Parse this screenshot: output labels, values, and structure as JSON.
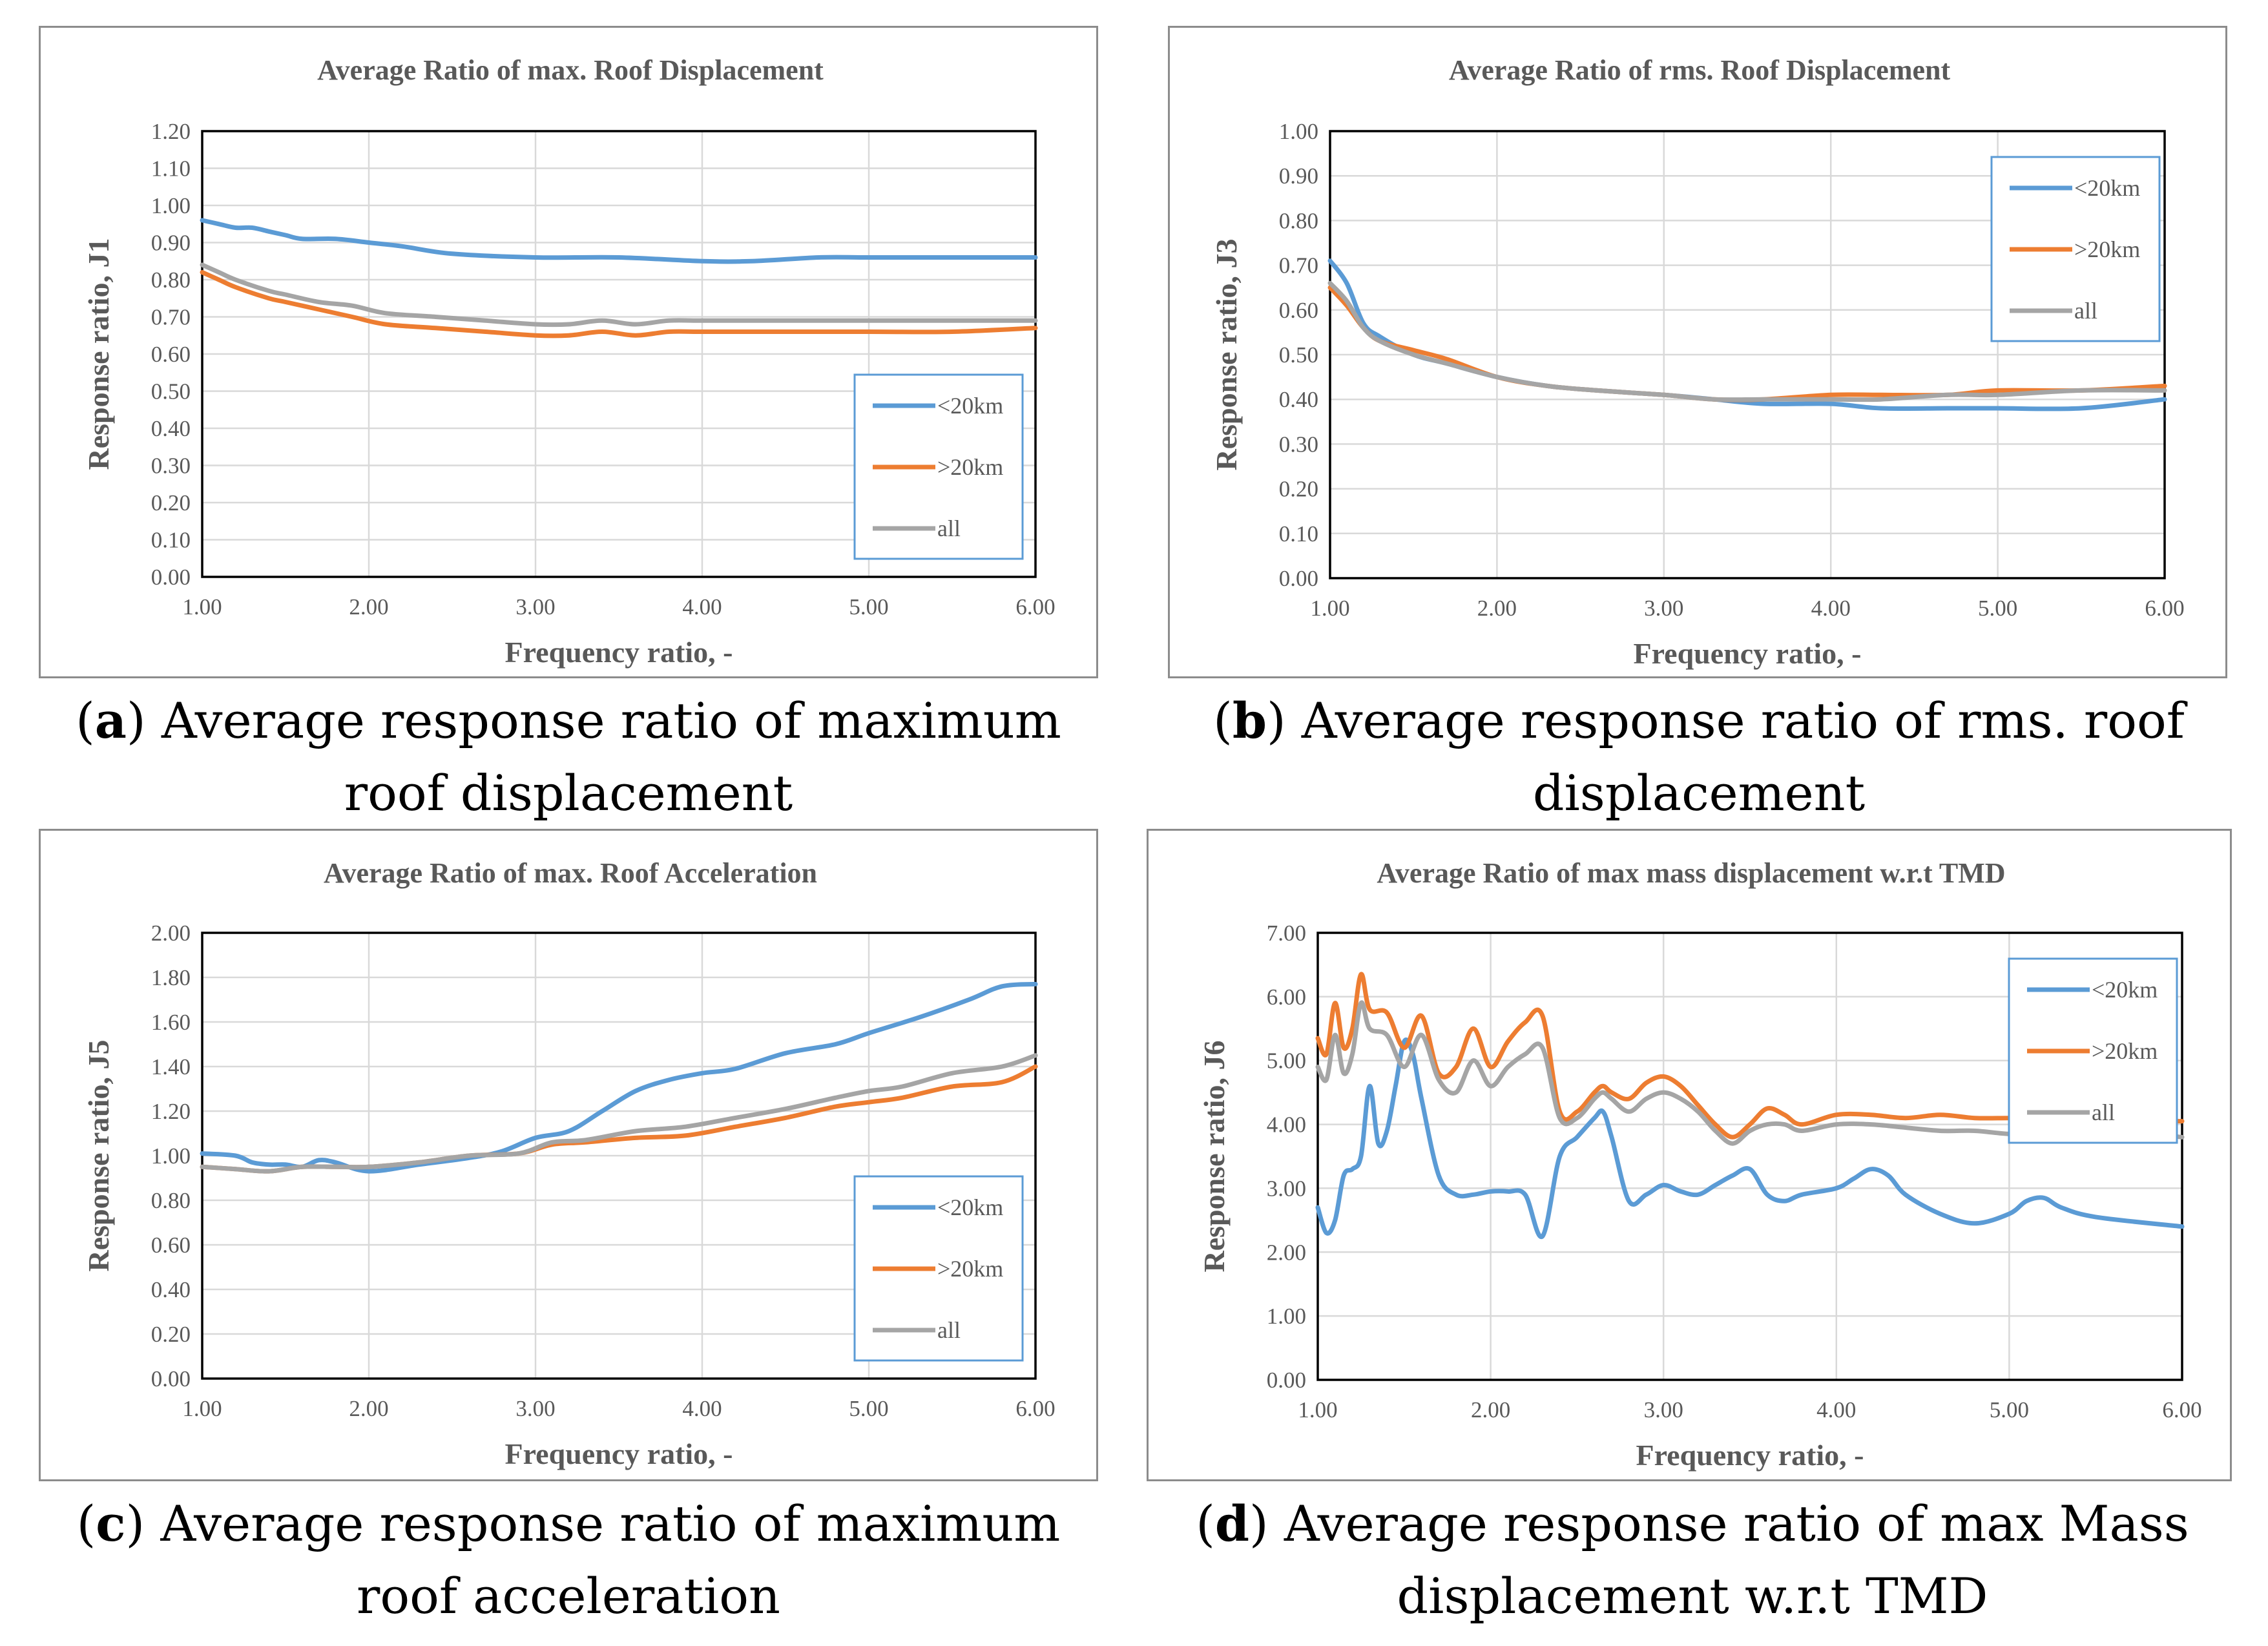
{
  "colors": {
    "lt20": "#5b9bd5",
    "gt20": "#ed7d31",
    "all": "#a5a5a5",
    "grid": "#d9d9d9",
    "text": "#595959",
    "border": "#8c8c8c"
  },
  "captions": [
    {
      "letter": "a",
      "text": ") Average response ratio of maximum roof displacement",
      "open": "("
    },
    {
      "letter": "b",
      "text": ") Average response ratio of rms. roof displacement",
      "open": "("
    },
    {
      "letter": "c",
      "text": ") Average response ratio of maximum roof acceleration",
      "open": "("
    },
    {
      "letter": "d",
      "text": ") Average response ratio of max Mass displacement w.r.t TMD",
      "open": "("
    }
  ],
  "chart_data": [
    {
      "type": "line",
      "title": "Average Ratio of max. Roof Displacement",
      "xlabel": "Frequency ratio, -",
      "ylabel": "Response ratio, J1",
      "xlim": [
        1,
        6
      ],
      "ylim": [
        0,
        1.2
      ],
      "xticks": [
        "1.00",
        "2.00",
        "3.00",
        "4.00",
        "5.00",
        "6.00"
      ],
      "yticks": [
        "0.00",
        "0.10",
        "0.20",
        "0.30",
        "0.40",
        "0.50",
        "0.60",
        "0.70",
        "0.80",
        "0.90",
        "1.00",
        "1.10",
        "1.20"
      ],
      "legend_position": "bottom-right",
      "series": [
        {
          "name": "<20km",
          "x": [
            1,
            1.1,
            1.2,
            1.3,
            1.4,
            1.5,
            1.6,
            1.8,
            2,
            2.2,
            2.5,
            3,
            3.5,
            4,
            4.3,
            4.7,
            5,
            5.5,
            6
          ],
          "values": [
            0.96,
            0.95,
            0.94,
            0.94,
            0.93,
            0.92,
            0.91,
            0.91,
            0.9,
            0.89,
            0.87,
            0.86,
            0.86,
            0.85,
            0.85,
            0.86,
            0.86,
            0.86,
            0.86
          ]
        },
        {
          "name": ">20km",
          "x": [
            1,
            1.1,
            1.2,
            1.4,
            1.5,
            1.7,
            1.9,
            2.1,
            2.4,
            2.7,
            3,
            3.2,
            3.4,
            3.6,
            3.8,
            4,
            4.5,
            5,
            5.5,
            6
          ],
          "values": [
            0.82,
            0.8,
            0.78,
            0.75,
            0.74,
            0.72,
            0.7,
            0.68,
            0.67,
            0.66,
            0.65,
            0.65,
            0.66,
            0.65,
            0.66,
            0.66,
            0.66,
            0.66,
            0.66,
            0.67
          ]
        },
        {
          "name": "all",
          "x": [
            1,
            1.1,
            1.2,
            1.4,
            1.5,
            1.7,
            1.9,
            2.1,
            2.4,
            2.7,
            3,
            3.2,
            3.4,
            3.6,
            3.8,
            4,
            4.5,
            5,
            5.5,
            6
          ],
          "values": [
            0.84,
            0.82,
            0.8,
            0.77,
            0.76,
            0.74,
            0.73,
            0.71,
            0.7,
            0.69,
            0.68,
            0.68,
            0.69,
            0.68,
            0.69,
            0.69,
            0.69,
            0.69,
            0.69,
            0.69
          ]
        }
      ]
    },
    {
      "type": "line",
      "title": "Average Ratio of rms. Roof Displacement",
      "xlabel": "Frequency ratio, -",
      "ylabel": "Response ratio, J3",
      "xlim": [
        1,
        6
      ],
      "ylim": [
        0,
        1.0
      ],
      "xticks": [
        "1.00",
        "2.00",
        "3.00",
        "4.00",
        "5.00",
        "6.00"
      ],
      "yticks": [
        "0.00",
        "0.10",
        "0.20",
        "0.30",
        "0.40",
        "0.50",
        "0.60",
        "0.70",
        "0.80",
        "0.90",
        "1.00"
      ],
      "legend_position": "top-right",
      "series": [
        {
          "name": "<20km",
          "x": [
            1,
            1.1,
            1.2,
            1.3,
            1.5,
            1.7,
            2,
            2.3,
            2.6,
            3,
            3.3,
            3.6,
            4,
            4.3,
            4.7,
            5,
            5.5,
            6
          ],
          "values": [
            0.71,
            0.66,
            0.57,
            0.54,
            0.5,
            0.48,
            0.45,
            0.43,
            0.42,
            0.41,
            0.4,
            0.39,
            0.39,
            0.38,
            0.38,
            0.38,
            0.38,
            0.4
          ]
        },
        {
          "name": ">20km",
          "x": [
            1,
            1.1,
            1.2,
            1.3,
            1.5,
            1.7,
            2,
            2.3,
            2.6,
            3,
            3.3,
            3.6,
            4,
            4.3,
            4.7,
            5,
            5.5,
            6
          ],
          "values": [
            0.65,
            0.61,
            0.56,
            0.53,
            0.51,
            0.49,
            0.45,
            0.43,
            0.42,
            0.41,
            0.4,
            0.4,
            0.41,
            0.41,
            0.41,
            0.42,
            0.42,
            0.43
          ]
        },
        {
          "name": "all",
          "x": [
            1,
            1.1,
            1.2,
            1.3,
            1.5,
            1.7,
            2,
            2.3,
            2.6,
            3,
            3.3,
            3.6,
            4,
            4.3,
            4.7,
            5,
            5.5,
            6
          ],
          "values": [
            0.66,
            0.62,
            0.56,
            0.53,
            0.5,
            0.48,
            0.45,
            0.43,
            0.42,
            0.41,
            0.4,
            0.4,
            0.4,
            0.4,
            0.41,
            0.41,
            0.42,
            0.42
          ]
        }
      ]
    },
    {
      "type": "line",
      "title": "Average Ratio of max. Roof Acceleration",
      "xlabel": "Frequency ratio, -",
      "ylabel": "Response ratio, J5",
      "xlim": [
        1,
        6
      ],
      "ylim": [
        0,
        2.0
      ],
      "xticks": [
        "1.00",
        "2.00",
        "3.00",
        "4.00",
        "5.00",
        "6.00"
      ],
      "yticks": [
        "0.00",
        "0.20",
        "0.40",
        "0.60",
        "0.80",
        "1.00",
        "1.20",
        "1.40",
        "1.60",
        "1.80",
        "2.00"
      ],
      "legend_position": "bottom-right",
      "series": [
        {
          "name": "<20km",
          "x": [
            1,
            1.2,
            1.3,
            1.4,
            1.5,
            1.6,
            1.7,
            1.8,
            2,
            2.3,
            2.6,
            2.8,
            3,
            3.2,
            3.4,
            3.6,
            3.8,
            4,
            4.2,
            4.5,
            4.8,
            5,
            5.3,
            5.6,
            5.8,
            6
          ],
          "values": [
            1.01,
            1.0,
            0.97,
            0.96,
            0.96,
            0.95,
            0.98,
            0.97,
            0.93,
            0.96,
            0.99,
            1.02,
            1.08,
            1.11,
            1.2,
            1.29,
            1.34,
            1.37,
            1.39,
            1.46,
            1.5,
            1.55,
            1.62,
            1.7,
            1.76,
            1.77
          ]
        },
        {
          "name": ">20km",
          "x": [
            1,
            1.2,
            1.4,
            1.6,
            1.8,
            2,
            2.3,
            2.6,
            2.9,
            3.1,
            3.3,
            3.6,
            3.9,
            4.2,
            4.5,
            4.8,
            5,
            5.2,
            5.5,
            5.8,
            6
          ],
          "values": [
            0.95,
            0.94,
            0.93,
            0.95,
            0.95,
            0.95,
            0.97,
            1.0,
            1.01,
            1.05,
            1.06,
            1.08,
            1.09,
            1.13,
            1.17,
            1.22,
            1.24,
            1.26,
            1.31,
            1.33,
            1.4
          ]
        },
        {
          "name": "all",
          "x": [
            1,
            1.2,
            1.4,
            1.6,
            1.8,
            2,
            2.3,
            2.6,
            2.9,
            3.1,
            3.3,
            3.6,
            3.9,
            4.2,
            4.5,
            4.8,
            5,
            5.2,
            5.5,
            5.8,
            6
          ],
          "values": [
            0.95,
            0.94,
            0.93,
            0.95,
            0.95,
            0.95,
            0.97,
            1.0,
            1.01,
            1.06,
            1.07,
            1.11,
            1.13,
            1.17,
            1.21,
            1.26,
            1.29,
            1.31,
            1.37,
            1.4,
            1.45
          ]
        }
      ]
    },
    {
      "type": "line",
      "title": "Average Ratio of max mass displacement w.r.t TMD",
      "xlabel": "Frequency ratio, -",
      "ylabel": "Response ratio, J6",
      "xlim": [
        1,
        6
      ],
      "ylim": [
        0,
        7.0
      ],
      "xticks": [
        "1.00",
        "2.00",
        "3.00",
        "4.00",
        "5.00",
        "6.00"
      ],
      "yticks": [
        "0.00",
        "1.00",
        "2.00",
        "3.00",
        "4.00",
        "5.00",
        "6.00",
        "7.00"
      ],
      "legend_position": "top-right",
      "series": [
        {
          "name": "<20km",
          "x": [
            1,
            1.05,
            1.1,
            1.15,
            1.2,
            1.25,
            1.3,
            1.35,
            1.4,
            1.45,
            1.5,
            1.55,
            1.6,
            1.7,
            1.8,
            1.9,
            2,
            2.1,
            2.2,
            2.3,
            2.4,
            2.5,
            2.6,
            2.65,
            2.7,
            2.8,
            2.9,
            3,
            3.1,
            3.2,
            3.3,
            3.4,
            3.5,
            3.6,
            3.7,
            3.8,
            4,
            4.1,
            4.2,
            4.3,
            4.4,
            4.6,
            4.8,
            5,
            5.1,
            5.2,
            5.3,
            5.5,
            6
          ],
          "values": [
            2.7,
            2.3,
            2.5,
            3.2,
            3.3,
            3.5,
            4.6,
            3.7,
            3.9,
            4.6,
            5.3,
            5.1,
            4.4,
            3.2,
            2.9,
            2.9,
            2.95,
            2.95,
            2.9,
            2.25,
            3.5,
            3.8,
            4.1,
            4.2,
            3.8,
            2.8,
            2.9,
            3.05,
            2.95,
            2.9,
            3.05,
            3.2,
            3.3,
            2.9,
            2.8,
            2.9,
            3.0,
            3.15,
            3.3,
            3.2,
            2.9,
            2.6,
            2.45,
            2.6,
            2.8,
            2.85,
            2.7,
            2.55,
            2.4
          ]
        },
        {
          "name": ">20km",
          "x": [
            1,
            1.05,
            1.1,
            1.15,
            1.2,
            1.25,
            1.3,
            1.4,
            1.5,
            1.6,
            1.7,
            1.8,
            1.9,
            2,
            2.1,
            2.2,
            2.3,
            2.4,
            2.5,
            2.6,
            2.65,
            2.7,
            2.8,
            2.9,
            3,
            3.1,
            3.2,
            3.3,
            3.4,
            3.5,
            3.6,
            3.7,
            3.8,
            4,
            4.2,
            4.4,
            4.6,
            4.8,
            5,
            5.2,
            5.4,
            5.6,
            5.8,
            6
          ],
          "values": [
            5.35,
            5.1,
            5.9,
            5.2,
            5.5,
            6.35,
            5.8,
            5.75,
            5.2,
            5.7,
            4.8,
            4.9,
            5.5,
            4.9,
            5.3,
            5.6,
            5.7,
            4.2,
            4.2,
            4.5,
            4.6,
            4.5,
            4.4,
            4.65,
            4.75,
            4.6,
            4.3,
            4.0,
            3.8,
            4.0,
            4.25,
            4.15,
            4.0,
            4.15,
            4.15,
            4.1,
            4.15,
            4.1,
            4.1,
            4.1,
            4.05,
            4.05,
            4.05,
            4.05
          ]
        },
        {
          "name": "all",
          "x": [
            1,
            1.05,
            1.1,
            1.15,
            1.2,
            1.25,
            1.3,
            1.4,
            1.5,
            1.6,
            1.7,
            1.8,
            1.9,
            2,
            2.1,
            2.2,
            2.3,
            2.4,
            2.5,
            2.6,
            2.65,
            2.7,
            2.8,
            2.9,
            3,
            3.1,
            3.2,
            3.3,
            3.4,
            3.5,
            3.6,
            3.7,
            3.8,
            4,
            4.2,
            4.4,
            4.6,
            4.8,
            5,
            5.2,
            5.4,
            5.6,
            5.8,
            6
          ],
          "values": [
            4.9,
            4.7,
            5.4,
            4.8,
            5.1,
            5.9,
            5.5,
            5.4,
            4.9,
            5.4,
            4.7,
            4.5,
            5.0,
            4.6,
            4.9,
            5.1,
            5.2,
            4.1,
            4.1,
            4.4,
            4.5,
            4.4,
            4.2,
            4.4,
            4.5,
            4.4,
            4.2,
            3.9,
            3.7,
            3.9,
            4.0,
            4.0,
            3.9,
            4.0,
            4.0,
            3.95,
            3.9,
            3.9,
            3.85,
            3.85,
            3.8,
            3.85,
            3.85,
            3.8
          ]
        }
      ]
    }
  ]
}
